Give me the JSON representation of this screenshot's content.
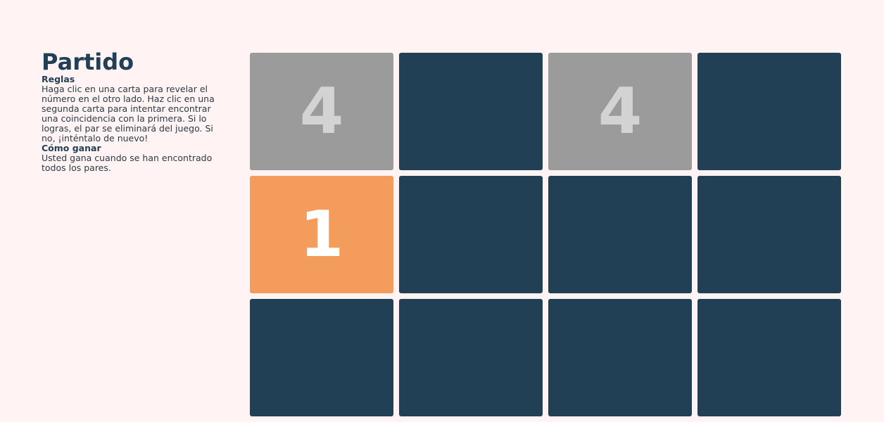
{
  "title": "Partido",
  "rules": {
    "heading": "Reglas",
    "text": "Haga clic en una carta para revelar el número en el otro lado. Haz clic en una segunda carta para intentar encontrar una coincidencia con la primera. Si lo logras, el par se eliminará del juego. Si no, ¡inténtalo de nuevo!"
  },
  "win": {
    "heading": "Cómo ganar",
    "text": "Usted gana cuando se han encontrado todos los pares."
  },
  "colors": {
    "background": "#fff3f4",
    "card_back": "#213f55",
    "card_revealed": "#9b9b9b",
    "card_selected": "#f39c5b"
  },
  "cards": [
    {
      "state": "revealed",
      "value": "4"
    },
    {
      "state": "hidden",
      "value": ""
    },
    {
      "state": "revealed",
      "value": "4"
    },
    {
      "state": "hidden",
      "value": ""
    },
    {
      "state": "selected",
      "value": "1"
    },
    {
      "state": "hidden",
      "value": ""
    },
    {
      "state": "hidden",
      "value": ""
    },
    {
      "state": "hidden",
      "value": ""
    },
    {
      "state": "hidden",
      "value": ""
    },
    {
      "state": "hidden",
      "value": ""
    },
    {
      "state": "hidden",
      "value": ""
    },
    {
      "state": "hidden",
      "value": ""
    }
  ]
}
